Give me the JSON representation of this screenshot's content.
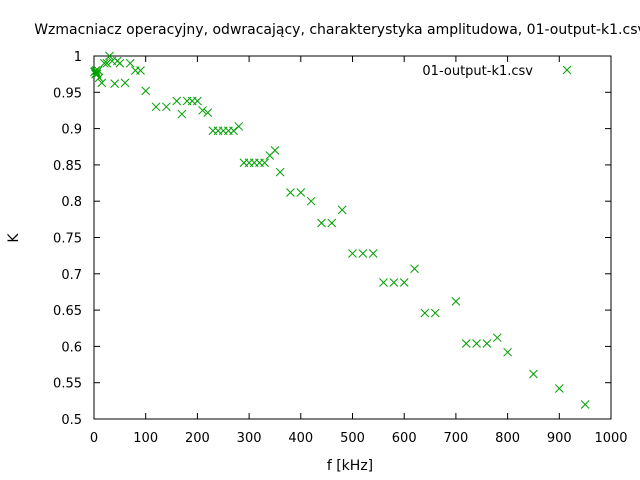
{
  "chart_data": {
    "type": "scatter",
    "title": "Wzmacniacz operacyjny, odwracający, charakterystyka amplitudowa, 01-output-k1.csv",
    "xlabel": "f [kHz]",
    "ylabel": "K",
    "xlim": [
      0,
      1000
    ],
    "ylim": [
      0.5,
      1
    ],
    "xticks": [
      0,
      100,
      200,
      300,
      400,
      500,
      600,
      700,
      800,
      900,
      1000
    ],
    "yticks": [
      0.5,
      0.55,
      0.6,
      0.65,
      0.7,
      0.75,
      0.8,
      0.85,
      0.9,
      0.95,
      1
    ],
    "grid": false,
    "legend_position": "top-right",
    "series": [
      {
        "name": "01-output-k1.csv",
        "color": "#00a000",
        "marker": "x",
        "points": [
          [
            1,
            0.978
          ],
          [
            2,
            0.979
          ],
          [
            3,
            0.975
          ],
          [
            4,
            0.98
          ],
          [
            5,
            0.977
          ],
          [
            6,
            0.975
          ],
          [
            8,
            0.98
          ],
          [
            10,
            0.97
          ],
          [
            15,
            0.963
          ],
          [
            20,
            0.99
          ],
          [
            25,
            0.99
          ],
          [
            30,
            1.0
          ],
          [
            35,
            0.993
          ],
          [
            40,
            0.962
          ],
          [
            45,
            0.993
          ],
          [
            50,
            0.99
          ],
          [
            60,
            0.963
          ],
          [
            70,
            0.99
          ],
          [
            80,
            0.98
          ],
          [
            90,
            0.98
          ],
          [
            100,
            0.952
          ],
          [
            120,
            0.93
          ],
          [
            140,
            0.93
          ],
          [
            160,
            0.938
          ],
          [
            170,
            0.92
          ],
          [
            180,
            0.938
          ],
          [
            190,
            0.938
          ],
          [
            200,
            0.938
          ],
          [
            210,
            0.925
          ],
          [
            220,
            0.922
          ],
          [
            230,
            0.897
          ],
          [
            240,
            0.897
          ],
          [
            250,
            0.897
          ],
          [
            260,
            0.897
          ],
          [
            270,
            0.897
          ],
          [
            280,
            0.903
          ],
          [
            290,
            0.853
          ],
          [
            300,
            0.853
          ],
          [
            310,
            0.853
          ],
          [
            320,
            0.853
          ],
          [
            330,
            0.853
          ],
          [
            340,
            0.863
          ],
          [
            350,
            0.87
          ],
          [
            360,
            0.84
          ],
          [
            380,
            0.812
          ],
          [
            400,
            0.812
          ],
          [
            420,
            0.8
          ],
          [
            440,
            0.77
          ],
          [
            460,
            0.77
          ],
          [
            480,
            0.788
          ],
          [
            500,
            0.728
          ],
          [
            520,
            0.728
          ],
          [
            540,
            0.728
          ],
          [
            560,
            0.688
          ],
          [
            580,
            0.688
          ],
          [
            600,
            0.688
          ],
          [
            620,
            0.707
          ],
          [
            640,
            0.646
          ],
          [
            660,
            0.646
          ],
          [
            700,
            0.662
          ],
          [
            720,
            0.604
          ],
          [
            740,
            0.604
          ],
          [
            760,
            0.604
          ],
          [
            780,
            0.612
          ],
          [
            800,
            0.592
          ],
          [
            850,
            0.562
          ],
          [
            900,
            0.542
          ],
          [
            950,
            0.52
          ]
        ]
      }
    ]
  }
}
